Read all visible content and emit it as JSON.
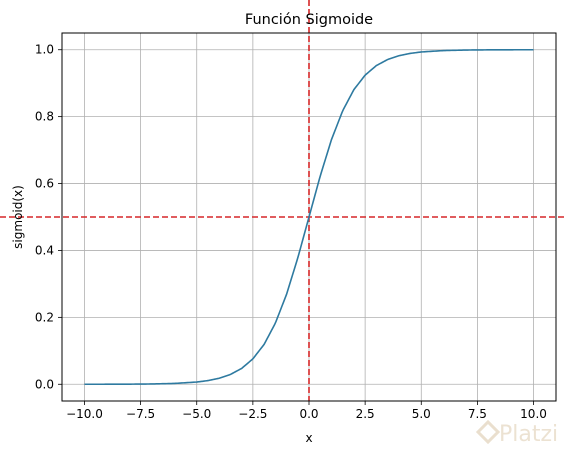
{
  "chart_data": {
    "type": "line",
    "title": "Función Sigmoide",
    "xlabel": "x",
    "ylabel": "sigmoid(x)",
    "xlim": [
      -11.0,
      11.0
    ],
    "ylim": [
      -0.05,
      1.05
    ],
    "xticks": [
      -10.0,
      -7.5,
      -5.0,
      -2.5,
      0.0,
      2.5,
      5.0,
      7.5,
      10.0
    ],
    "xtick_labels": [
      "−10.0",
      "−7.5",
      "−5.0",
      "−2.5",
      "0.0",
      "2.5",
      "5.0",
      "7.5",
      "10.0"
    ],
    "yticks": [
      0.0,
      0.2,
      0.4,
      0.6,
      0.8,
      1.0
    ],
    "ytick_labels": [
      "0.0",
      "0.2",
      "0.4",
      "0.6",
      "0.8",
      "1.0"
    ],
    "grid": true,
    "series": [
      {
        "color": "#2e7aa0",
        "x": [
          -10,
          -9,
          -8,
          -7,
          -6,
          -5,
          -4.5,
          -4,
          -3.5,
          -3,
          -2.5,
          -2,
          -1.5,
          -1,
          -0.5,
          0,
          0.5,
          1,
          1.5,
          2,
          2.5,
          3,
          3.5,
          4,
          4.5,
          5,
          6,
          7,
          8,
          9,
          10
        ],
        "y": [
          4.54e-05,
          0.000123,
          0.000335,
          0.000911,
          0.00247,
          0.00669,
          0.011,
          0.018,
          0.0293,
          0.0474,
          0.0759,
          0.1192,
          0.1824,
          0.2689,
          0.3775,
          0.5,
          0.6225,
          0.7311,
          0.8176,
          0.8808,
          0.9241,
          0.9526,
          0.9707,
          0.982,
          0.989,
          0.9933,
          0.99753,
          0.99909,
          0.99966,
          0.99988,
          0.99995
        ]
      }
    ],
    "reference_lines": [
      {
        "orientation": "vertical",
        "value": 0,
        "color": "#d62728",
        "style": "dashed"
      },
      {
        "orientation": "horizontal",
        "value": 0.5,
        "color": "#d62728",
        "style": "dashed"
      }
    ]
  },
  "watermark": {
    "text": "Platzi",
    "color": "#eadfce"
  }
}
